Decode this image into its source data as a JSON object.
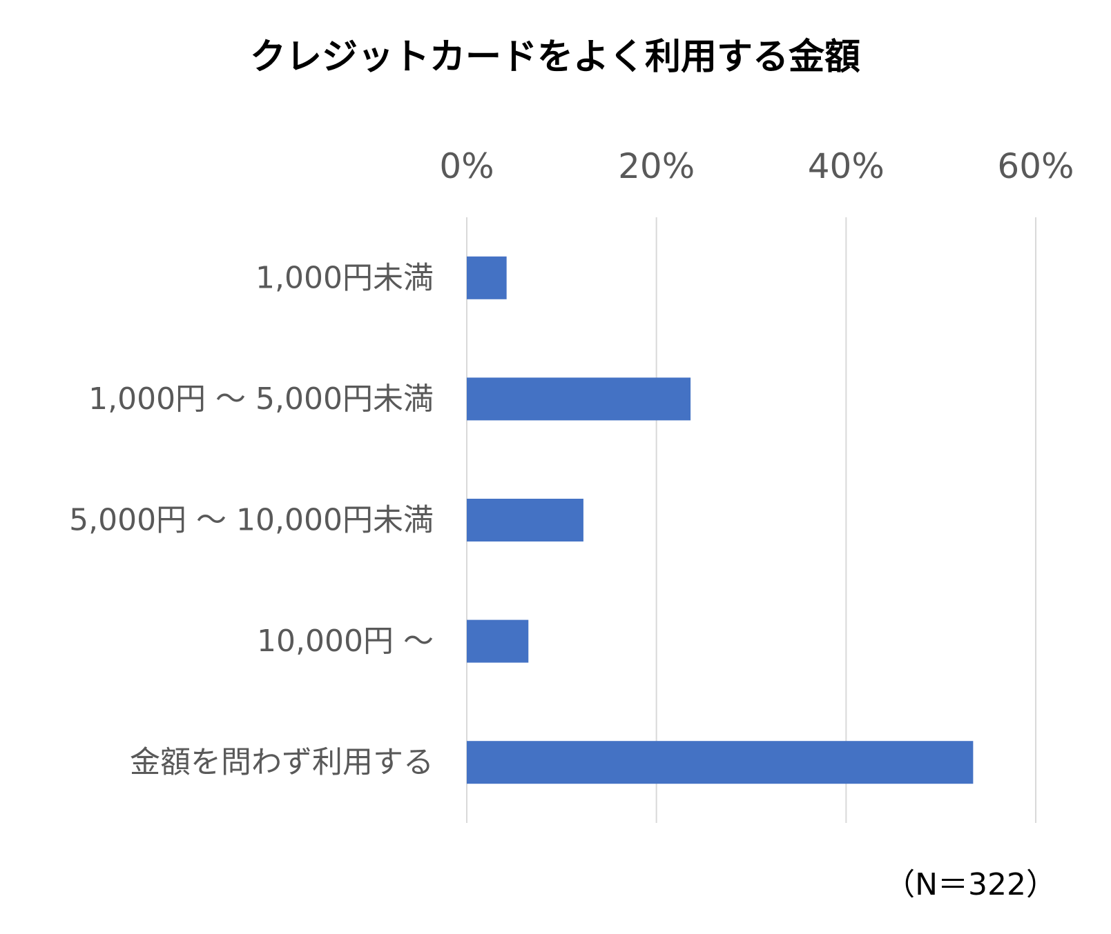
{
  "chart_data": {
    "type": "bar",
    "orientation": "horizontal",
    "title": "クレジットカードをよく利用する金額",
    "categories": [
      "1,000円未満",
      "1,000円 ～ 5,000円未満",
      "5,000円 ～ 10,000円未満",
      "10,000円 ～",
      "金額を問わず利用する"
    ],
    "values": [
      4.2,
      23.6,
      12.3,
      6.5,
      53.4
    ],
    "value_unit": "%",
    "xlim": [
      0,
      60
    ],
    "x_ticks": [
      0,
      20,
      40,
      60
    ],
    "x_tick_labels": [
      "0%",
      "20%",
      "40%",
      "60%"
    ],
    "x_axis_position": "top",
    "grid": true,
    "legend": "none",
    "annotation": "（N＝322）",
    "colors": {
      "bar": "#4472C4",
      "grid": "#D9D9D9",
      "label_text": "#595959",
      "title_text": "#000000"
    }
  }
}
